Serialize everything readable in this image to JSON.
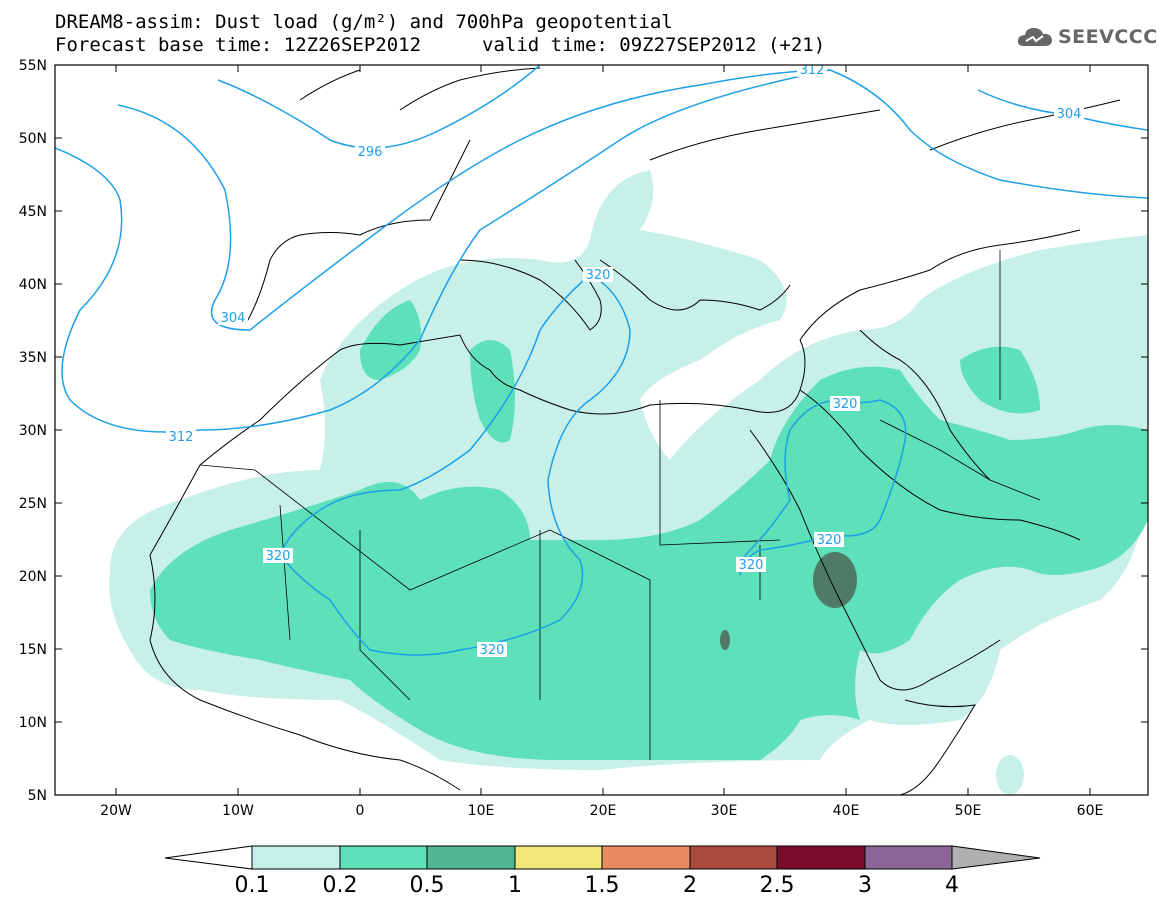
{
  "title": {
    "line1": "DREAM8-assim: Dust load (g/m²) and 700hPa geopotential",
    "line2_left": "Forecast base time: 12Z26SEP2012",
    "line2_right": "valid time: 09Z27SEP2012 (+21)"
  },
  "logo": {
    "text": "SEEVCCC",
    "icon": "cloud-icon"
  },
  "map": {
    "lat_ticks": [
      "55N",
      "50N",
      "45N",
      "40N",
      "35N",
      "30N",
      "25N",
      "20N",
      "15N",
      "10N",
      "5N"
    ],
    "lon_ticks": [
      "20W",
      "10W",
      "0",
      "10E",
      "20E",
      "30E",
      "40E",
      "50E",
      "60E"
    ],
    "contour_labels": [
      "296",
      "304",
      "304",
      "312",
      "312",
      "320",
      "320",
      "320",
      "320",
      "320",
      "320"
    ],
    "colors": {
      "c01": "#c6f0e8",
      "c02": "#5ee0b8",
      "c05": "#52b594",
      "c1": "#f2e87a",
      "c15": "#e98b62",
      "c2": "#a84a3c",
      "c25": "#7a0d2c",
      "c3": "#8a6596",
      "c4": "#b0b0b0",
      "dark": "#4f7a68",
      "contour": "#1da0e8"
    }
  },
  "colorbar": {
    "labels": [
      "0.1",
      "0.2",
      "0.5",
      "1",
      "1.5",
      "2",
      "2.5",
      "3",
      "4"
    ]
  }
}
